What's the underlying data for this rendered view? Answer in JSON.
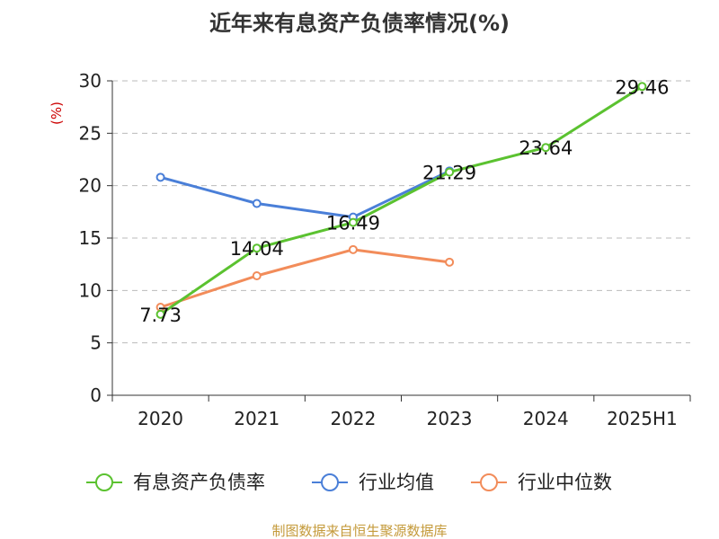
{
  "chart_data": {
    "type": "line",
    "title": "近年来有息资产负债率情况(%)",
    "unit_label": "(%)",
    "categories": [
      "2020",
      "2021",
      "2022",
      "2023",
      "2024",
      "2025H1"
    ],
    "ylim": [
      0,
      30
    ],
    "yticks": [
      0,
      5,
      10,
      15,
      20,
      25,
      30
    ],
    "grid": true,
    "legend_position": "bottom",
    "series": [
      {
        "name": "有息资产负债率",
        "color": "#5bc230",
        "values": [
          7.73,
          14.04,
          16.49,
          21.29,
          23.64,
          29.46
        ],
        "data_labels": [
          "7.73",
          "14.04",
          "16.49",
          "21.29",
          "23.64",
          "29.46"
        ]
      },
      {
        "name": "行业均值",
        "color": "#4a7fd8",
        "values": [
          20.8,
          18.3,
          17.0,
          21.4,
          null,
          null
        ]
      },
      {
        "name": "行业中位数",
        "color": "#f28c5a",
        "values": [
          8.4,
          11.4,
          13.9,
          12.7,
          null,
          null
        ]
      }
    ]
  },
  "source": "制图数据来自恒生聚源数据库"
}
